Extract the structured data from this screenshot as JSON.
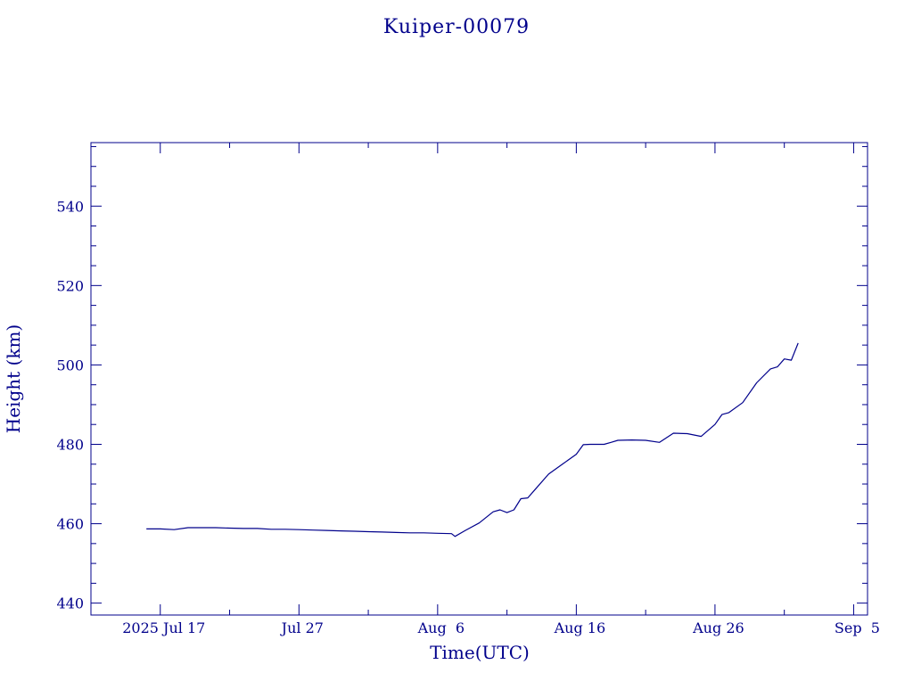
{
  "chart_data": {
    "type": "line",
    "title": "Kuiper-00079",
    "xlabel": "Time(UTC)",
    "ylabel": "Height (km)",
    "color": "#00008b",
    "grid": false,
    "legend": "none",
    "xlim": [
      "2025-07-12",
      "2025-09-06"
    ],
    "ylim": [
      437,
      556
    ],
    "x_ticks": [
      {
        "date": "2025-07-17",
        "label": "2025 Jul 17"
      },
      {
        "date": "2025-07-27",
        "label": "Jul 27"
      },
      {
        "date": "2025-08-06",
        "label": "Aug  6"
      },
      {
        "date": "2025-08-16",
        "label": "Aug 16"
      },
      {
        "date": "2025-08-26",
        "label": "Aug 26"
      },
      {
        "date": "2025-09-05",
        "label": "Sep  5"
      }
    ],
    "y_ticks": [
      440,
      460,
      480,
      500,
      520,
      540
    ],
    "series": [
      {
        "points": [
          [
            "2025-07-16T00:00",
            458.7
          ],
          [
            "2025-07-17T00:00",
            458.7
          ],
          [
            "2025-07-18T00:00",
            458.5
          ],
          [
            "2025-07-19T00:00",
            459.0
          ],
          [
            "2025-07-20T00:00",
            459.0
          ],
          [
            "2025-07-21T00:00",
            459.0
          ],
          [
            "2025-07-22T00:00",
            458.9
          ],
          [
            "2025-07-23T00:00",
            458.8
          ],
          [
            "2025-07-24T00:00",
            458.8
          ],
          [
            "2025-07-25T00:00",
            458.6
          ],
          [
            "2025-07-26T00:00",
            458.6
          ],
          [
            "2025-07-27T00:00",
            458.5
          ],
          [
            "2025-07-28T00:00",
            458.4
          ],
          [
            "2025-07-29T00:00",
            458.3
          ],
          [
            "2025-07-30T00:00",
            458.2
          ],
          [
            "2025-07-31T00:00",
            458.1
          ],
          [
            "2025-08-01T00:00",
            458.0
          ],
          [
            "2025-08-02T00:00",
            457.9
          ],
          [
            "2025-08-03T00:00",
            457.8
          ],
          [
            "2025-08-04T00:00",
            457.7
          ],
          [
            "2025-08-05T00:00",
            457.7
          ],
          [
            "2025-08-06T00:00",
            457.6
          ],
          [
            "2025-08-07T00:00",
            457.5
          ],
          [
            "2025-08-07T06:00",
            456.8
          ],
          [
            "2025-08-08T00:00",
            458.3
          ],
          [
            "2025-08-09T00:00",
            460.2
          ],
          [
            "2025-08-10T00:00",
            463.0
          ],
          [
            "2025-08-10T12:00",
            463.5
          ],
          [
            "2025-08-11T00:00",
            462.8
          ],
          [
            "2025-08-11T12:00",
            463.5
          ],
          [
            "2025-08-12T00:00",
            466.3
          ],
          [
            "2025-08-12T12:00",
            466.5
          ],
          [
            "2025-08-13T00:00",
            468.5
          ],
          [
            "2025-08-14T00:00",
            472.5
          ],
          [
            "2025-08-15T00:00",
            475.0
          ],
          [
            "2025-08-16T00:00",
            477.5
          ],
          [
            "2025-08-16T12:00",
            479.9
          ],
          [
            "2025-08-17T00:00",
            480.0
          ],
          [
            "2025-08-18T00:00",
            480.0
          ],
          [
            "2025-08-18T12:00",
            480.5
          ],
          [
            "2025-08-19T00:00",
            481.0
          ],
          [
            "2025-08-20T00:00",
            481.1
          ],
          [
            "2025-08-21T00:00",
            481.0
          ],
          [
            "2025-08-22T00:00",
            480.5
          ],
          [
            "2025-08-23T00:00",
            482.8
          ],
          [
            "2025-08-24T00:00",
            482.7
          ],
          [
            "2025-08-25T00:00",
            482.0
          ],
          [
            "2025-08-26T00:00",
            485.0
          ],
          [
            "2025-08-26T12:00",
            487.5
          ],
          [
            "2025-08-27T00:00",
            488.0
          ],
          [
            "2025-08-28T00:00",
            490.5
          ],
          [
            "2025-08-29T00:00",
            495.5
          ],
          [
            "2025-08-30T00:00",
            499.0
          ],
          [
            "2025-08-30T12:00",
            499.5
          ],
          [
            "2025-08-31T00:00",
            501.5
          ],
          [
            "2025-08-31T12:00",
            501.2
          ],
          [
            "2025-09-01T00:00",
            505.5
          ]
        ]
      }
    ]
  }
}
